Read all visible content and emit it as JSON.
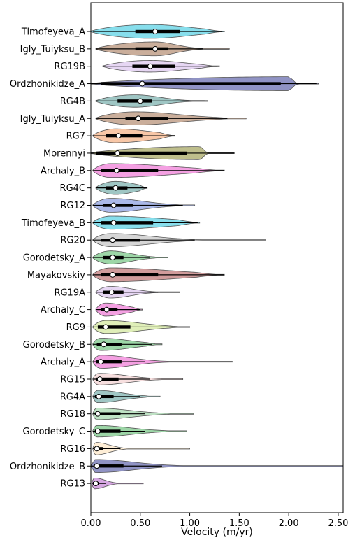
{
  "chart_data": {
    "type": "violin",
    "orientation": "horizontal",
    "title": "",
    "xlabel": "Velocity (m/yr)",
    "ylabel": "",
    "xlim": [
      0,
      2.55
    ],
    "xticks": [
      "0.00",
      "0.50",
      "1.00",
      "1.50",
      "2.00",
      "2.50"
    ],
    "xtick_values": [
      0,
      0.5,
      1.0,
      1.5,
      2.0,
      2.5
    ],
    "grid": false,
    "legend": "none",
    "median_marker": "white circle",
    "series": [
      {
        "name": "Timofeyeva_A",
        "color": "#5fd3e6",
        "min": 0.0,
        "max": 1.35,
        "q1": 0.45,
        "median": 0.65,
        "q3": 0.9,
        "whisker_lo": 0.02,
        "whisker_hi": 1.33,
        "mode": 0.6,
        "width": 0.9
      },
      {
        "name": "Igly_Tuiyksu_B",
        "color": "#b8937a",
        "min": 0.05,
        "max": 1.4,
        "q1": 0.45,
        "median": 0.65,
        "q3": 0.78,
        "whisker_lo": 0.05,
        "whisker_hi": 1.13,
        "mode": 0.65,
        "width": 0.9
      },
      {
        "name": "RG19B",
        "color": "#ddc8ef",
        "min": 0.12,
        "max": 1.3,
        "q1": 0.42,
        "median": 0.6,
        "q3": 0.85,
        "whisker_lo": 0.12,
        "whisker_hi": 1.28,
        "mode": 0.6,
        "width": 0.75
      },
      {
        "name": "Ordzhonikidze_A",
        "color": "#6b6fb0",
        "min": 0.0,
        "max": 2.3,
        "q1": 0.1,
        "median": 0.52,
        "q3": 1.92,
        "whisker_lo": 0.0,
        "whisker_hi": 2.28,
        "mode": 2.0,
        "width": 0.9
      },
      {
        "name": "RG4B",
        "color": "#7fb3b0",
        "min": 0.05,
        "max": 1.18,
        "q1": 0.27,
        "median": 0.5,
        "q3": 0.62,
        "whisker_lo": 0.05,
        "whisker_hi": 1.15,
        "mode": 0.45,
        "width": 0.8
      },
      {
        "name": "Igly_Tuiyksu_A",
        "color": "#b8937a",
        "min": 0.05,
        "max": 1.57,
        "q1": 0.35,
        "median": 0.48,
        "q3": 0.78,
        "whisker_lo": 0.05,
        "whisker_hi": 1.38,
        "mode": 0.45,
        "width": 0.85
      },
      {
        "name": "RG7",
        "color": "#f5b48a",
        "min": 0.02,
        "max": 0.85,
        "q1": 0.15,
        "median": 0.28,
        "q3": 0.52,
        "whisker_lo": 0.02,
        "whisker_hi": 0.85,
        "mode": 0.25,
        "width": 0.9
      },
      {
        "name": "Morennyi",
        "color": "#a8a866",
        "min": 0.0,
        "max": 1.45,
        "q1": 0.05,
        "median": 0.27,
        "q3": 0.97,
        "whisker_lo": 0.0,
        "whisker_hi": 1.45,
        "mode": 1.1,
        "width": 0.85
      },
      {
        "name": "Archaly_B",
        "color": "#f080d8",
        "min": 0.02,
        "max": 1.35,
        "q1": 0.1,
        "median": 0.26,
        "q3": 0.68,
        "whisker_lo": 0.02,
        "whisker_hi": 1.35,
        "mode": 0.2,
        "width": 0.9
      },
      {
        "name": "RG4C",
        "color": "#7fb3b0",
        "min": 0.05,
        "max": 0.57,
        "q1": 0.15,
        "median": 0.25,
        "q3": 0.37,
        "whisker_lo": 0.05,
        "whisker_hi": 0.57,
        "mode": 0.25,
        "width": 0.85
      },
      {
        "name": "RG12",
        "color": "#8ea0e0",
        "min": 0.02,
        "max": 1.05,
        "q1": 0.12,
        "median": 0.23,
        "q3": 0.43,
        "whisker_lo": 0.02,
        "whisker_hi": 0.93,
        "mode": 0.2,
        "width": 0.9
      },
      {
        "name": "Timofeyeva_B",
        "color": "#5fd3e6",
        "min": 0.02,
        "max": 1.1,
        "q1": 0.1,
        "median": 0.23,
        "q3": 0.63,
        "whisker_lo": 0.02,
        "whisker_hi": 1.08,
        "mode": 0.2,
        "width": 0.85
      },
      {
        "name": "RG20",
        "color": "#c8c8c8",
        "min": 0.02,
        "max": 1.77,
        "q1": 0.1,
        "median": 0.22,
        "q3": 0.5,
        "whisker_lo": 0.02,
        "whisker_hi": 1.05,
        "mode": 0.2,
        "width": 0.85
      },
      {
        "name": "Gorodetsky_A",
        "color": "#7cc88a",
        "min": 0.02,
        "max": 0.78,
        "q1": 0.12,
        "median": 0.22,
        "q3": 0.33,
        "whisker_lo": 0.02,
        "whisker_hi": 0.6,
        "mode": 0.2,
        "width": 0.85
      },
      {
        "name": "Mayakovskiy",
        "color": "#c07a7a",
        "min": 0.02,
        "max": 1.35,
        "q1": 0.1,
        "median": 0.22,
        "q3": 0.68,
        "whisker_lo": 0.02,
        "whisker_hi": 1.35,
        "mode": 0.2,
        "width": 0.9
      },
      {
        "name": "RG19A",
        "color": "#ddc8ef",
        "min": 0.05,
        "max": 0.9,
        "q1": 0.12,
        "median": 0.21,
        "q3": 0.33,
        "whisker_lo": 0.05,
        "whisker_hi": 0.68,
        "mode": 0.2,
        "width": 0.75
      },
      {
        "name": "Archaly_C",
        "color": "#f080d8",
        "min": 0.05,
        "max": 0.52,
        "q1": 0.1,
        "median": 0.16,
        "q3": 0.27,
        "whisker_lo": 0.05,
        "whisker_hi": 0.5,
        "mode": 0.15,
        "width": 0.85
      },
      {
        "name": "RG9",
        "color": "#d4e8a0",
        "min": 0.02,
        "max": 1.0,
        "q1": 0.07,
        "median": 0.15,
        "q3": 0.4,
        "whisker_lo": 0.02,
        "whisker_hi": 0.88,
        "mode": 0.15,
        "width": 0.85
      },
      {
        "name": "Gorodetsky_B",
        "color": "#7cc88a",
        "min": 0.02,
        "max": 0.72,
        "q1": 0.06,
        "median": 0.13,
        "q3": 0.31,
        "whisker_lo": 0.02,
        "whisker_hi": 0.62,
        "mode": 0.1,
        "width": 0.8
      },
      {
        "name": "Archaly_A",
        "color": "#f080d8",
        "min": 0.02,
        "max": 1.43,
        "q1": 0.05,
        "median": 0.1,
        "q3": 0.31,
        "whisker_lo": 0.02,
        "whisker_hi": 0.55,
        "mode": 0.1,
        "width": 0.85
      },
      {
        "name": "RG15",
        "color": "#f4d4d4",
        "min": 0.02,
        "max": 0.93,
        "q1": 0.05,
        "median": 0.09,
        "q3": 0.28,
        "whisker_lo": 0.02,
        "whisker_hi": 0.6,
        "mode": 0.08,
        "width": 0.75
      },
      {
        "name": "RG4A",
        "color": "#7fb3b0",
        "min": 0.02,
        "max": 0.7,
        "q1": 0.04,
        "median": 0.08,
        "q3": 0.23,
        "whisker_lo": 0.02,
        "whisker_hi": 0.5,
        "mode": 0.07,
        "width": 0.8
      },
      {
        "name": "RG18",
        "color": "#a8d8b0",
        "min": 0.02,
        "max": 1.04,
        "q1": 0.04,
        "median": 0.07,
        "q3": 0.3,
        "whisker_lo": 0.02,
        "whisker_hi": 0.55,
        "mode": 0.06,
        "width": 0.75
      },
      {
        "name": "Gorodetsky_C",
        "color": "#7cc88a",
        "min": 0.02,
        "max": 0.97,
        "q1": 0.04,
        "median": 0.07,
        "q3": 0.3,
        "whisker_lo": 0.02,
        "whisker_hi": 0.55,
        "mode": 0.06,
        "width": 0.75
      },
      {
        "name": "RG16",
        "color": "#fde8c8",
        "min": 0.02,
        "max": 1.0,
        "q1": 0.03,
        "median": 0.06,
        "q3": 0.12,
        "whisker_lo": 0.02,
        "whisker_hi": 0.3,
        "mode": 0.05,
        "width": 0.8
      },
      {
        "name": "Ordzhonikidze_B",
        "color": "#6b6fb0",
        "min": 0.0,
        "max": 2.55,
        "q1": 0.03,
        "median": 0.06,
        "q3": 0.33,
        "whisker_lo": 0.0,
        "whisker_hi": 0.72,
        "mode": 0.05,
        "width": 0.85
      },
      {
        "name": "RG13",
        "color": "#c88ad8",
        "min": 0.01,
        "max": 0.53,
        "q1": 0.02,
        "median": 0.05,
        "q3": 0.08,
        "whisker_lo": 0.01,
        "whisker_hi": 0.15,
        "mode": 0.04,
        "width": 0.7
      }
    ]
  }
}
